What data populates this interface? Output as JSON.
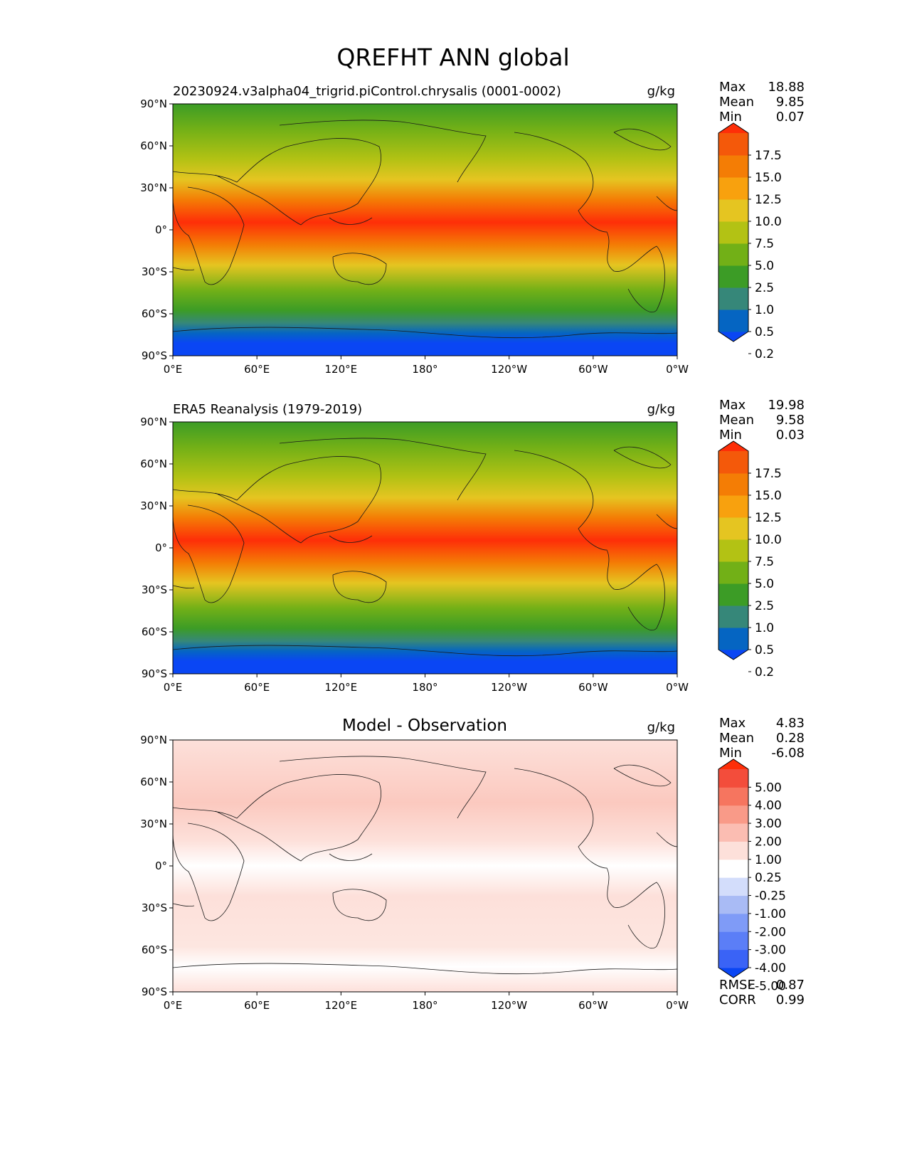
{
  "figure": {
    "title": "QREFHT ANN global"
  },
  "axis_labels": {
    "x": [
      "0°E",
      "60°E",
      "120°E",
      "180°",
      "120°W",
      "60°W",
      "0°W"
    ],
    "y": [
      "90°N",
      "60°N",
      "30°N",
      "0°",
      "30°S",
      "60°S",
      "90°S"
    ]
  },
  "panels": [
    {
      "left_title": "20230924.v3alpha04_trigrid.piControl.chrysalis (0001-0002)",
      "center_title": "",
      "units": "g/kg",
      "stats": [
        {
          "label": "Max",
          "value": "18.88"
        },
        {
          "label": "Mean",
          "value": "9.85"
        },
        {
          "label": "Min",
          "value": "0.07"
        }
      ],
      "colorbar": {
        "ticks": [
          "17.5",
          "15.0",
          "12.5",
          "10.0",
          "7.5",
          "5.0",
          "2.5",
          "1.0",
          "0.5",
          "0.2"
        ],
        "colors": [
          "#0a46f4",
          "#0565c2",
          "#368779",
          "#3c9c26",
          "#72b017",
          "#b3c214",
          "#e5c521",
          "#f8a10e",
          "#f47d05",
          "#f4590a",
          "#fe2e08"
        ]
      },
      "footer_stats": []
    },
    {
      "left_title": "ERA5 Reanalysis (1979-2019)",
      "center_title": "",
      "units": "g/kg",
      "stats": [
        {
          "label": "Max",
          "value": "19.98"
        },
        {
          "label": "Mean",
          "value": "9.58"
        },
        {
          "label": "Min",
          "value": "0.03"
        }
      ],
      "colorbar": {
        "ticks": [
          "17.5",
          "15.0",
          "12.5",
          "10.0",
          "7.5",
          "5.0",
          "2.5",
          "1.0",
          "0.5",
          "0.2"
        ],
        "colors": [
          "#0a46f4",
          "#0565c2",
          "#368779",
          "#3c9c26",
          "#72b017",
          "#b3c214",
          "#e5c521",
          "#f8a10e",
          "#f47d05",
          "#f4590a",
          "#fe2e08"
        ]
      },
      "footer_stats": []
    },
    {
      "left_title": "",
      "center_title": "Model - Observation",
      "units": "g/kg",
      "stats": [
        {
          "label": "Max",
          "value": "4.83"
        },
        {
          "label": "Mean",
          "value": "0.28"
        },
        {
          "label": "Min",
          "value": "-6.08"
        }
      ],
      "colorbar": {
        "ticks": [
          "5.00",
          "4.00",
          "3.00",
          "2.00",
          "1.00",
          "0.25",
          "-0.25",
          "-1.00",
          "-2.00",
          "-3.00",
          "-4.00",
          "-5.00"
        ],
        "colors": [
          "#0a46f4",
          "#3a63f6",
          "#5b7ef7",
          "#7f9bf7",
          "#a9bbf5",
          "#d3ddfb",
          "#ffffff",
          "#fde0da",
          "#fbbdb2",
          "#f99a88",
          "#f6755f",
          "#f34d3b",
          "#fe2e08"
        ]
      },
      "footer_stats": [
        {
          "label": "RMSE",
          "value": "0.87"
        },
        {
          "label": "CORR",
          "value": "0.99"
        }
      ]
    }
  ]
}
